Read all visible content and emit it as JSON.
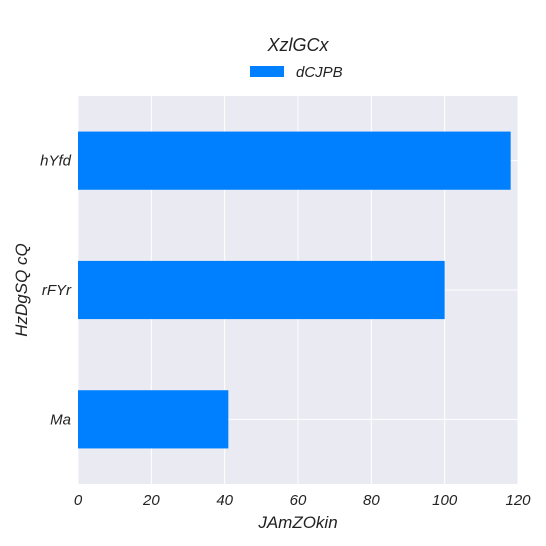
{
  "chart_data": {
    "type": "bar",
    "orientation": "horizontal",
    "title": "XzlGCx",
    "xlabel": "JAmZOkin",
    "ylabel": "HzDgSQ cQ",
    "categories": [
      "hYfd",
      "rFYr",
      "Ma"
    ],
    "series": [
      {
        "name": "dCJPB",
        "values": [
          118,
          100,
          41
        ],
        "color": "#0080ff"
      }
    ],
    "xlim": [
      0,
      120
    ],
    "xticks": [
      0,
      20,
      40,
      60,
      80,
      100,
      120
    ],
    "grid": true,
    "legend_position": "top-center",
    "style": {
      "plot_background": "#eaeaf2",
      "grid_color": "#ffffff",
      "text_color": "#222222"
    }
  }
}
